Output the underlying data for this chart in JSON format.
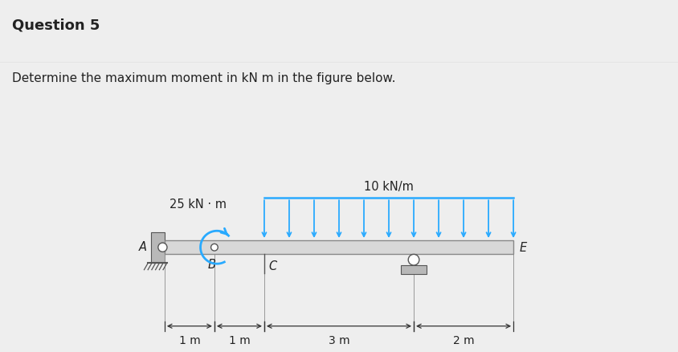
{
  "title": "Question 5",
  "subtitle": "Determine the maximum moment in kN m in the figure below.",
  "bg_color": "#eeeeee",
  "plot_bg": "#ffffff",
  "beam_color": "#d8d8d8",
  "beam_edge_color": "#888888",
  "load_color": "#29aaff",
  "moment_arrow_color": "#29aaff",
  "support_color": "#c0c0c0",
  "support_edge": "#555555",
  "dim_color": "#333333",
  "text_color": "#222222",
  "load_label": "10 kN/m",
  "moment_label": "25 kN · m",
  "title_fontsize": 13,
  "subtitle_fontsize": 11,
  "label_fontsize": 10.5,
  "dim_fontsize": 10
}
